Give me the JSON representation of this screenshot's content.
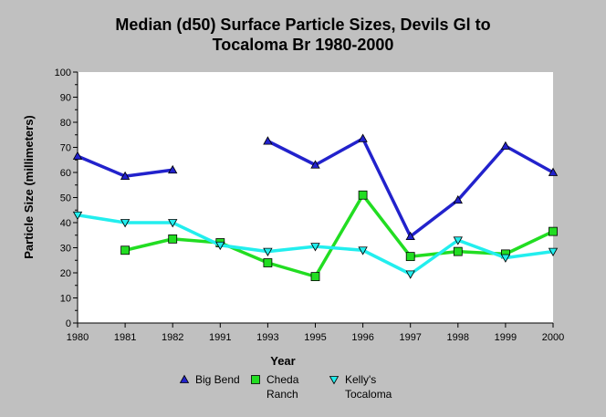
{
  "chart_data": {
    "type": "line",
    "title_line1": "Median (d50) Surface Particle Sizes, Devils Gl to",
    "title_line2": "Tocaloma Br 1980-2000",
    "xlabel": "Year",
    "ylabel": "Particle Size (millimeters)",
    "ylim": [
      0,
      100
    ],
    "y_ticks": [
      0,
      10,
      20,
      30,
      40,
      50,
      60,
      70,
      80,
      90,
      100
    ],
    "categories": [
      "1980",
      "1981",
      "1982",
      "1991",
      "1993",
      "1995",
      "1996",
      "1997",
      "1998",
      "1999",
      "2000"
    ],
    "grid": false,
    "legend_position": "bottom",
    "series": [
      {
        "name": "Big Bend",
        "legend_lines": [
          "Big Bend"
        ],
        "color": "#2222cc",
        "marker": "triangle-up",
        "values": [
          66.5,
          58.5,
          61,
          null,
          72.5,
          63,
          73.5,
          34.5,
          49,
          70.5,
          60
        ]
      },
      {
        "name": "Cheda Ranch",
        "legend_lines": [
          "Cheda",
          "Ranch"
        ],
        "color": "#22dd22",
        "marker": "square",
        "values": [
          null,
          29,
          33.5,
          32,
          24,
          18.5,
          51,
          26.5,
          28.5,
          27.5,
          36.5
        ]
      },
      {
        "name": "Kelly's Tocaloma",
        "legend_lines": [
          "Kelly's",
          "Tocaloma"
        ],
        "color": "#22eeee",
        "marker": "triangle-down",
        "values": [
          43,
          40,
          40,
          31,
          28.5,
          30.5,
          29,
          19.5,
          33,
          26,
          28.5
        ]
      }
    ]
  }
}
